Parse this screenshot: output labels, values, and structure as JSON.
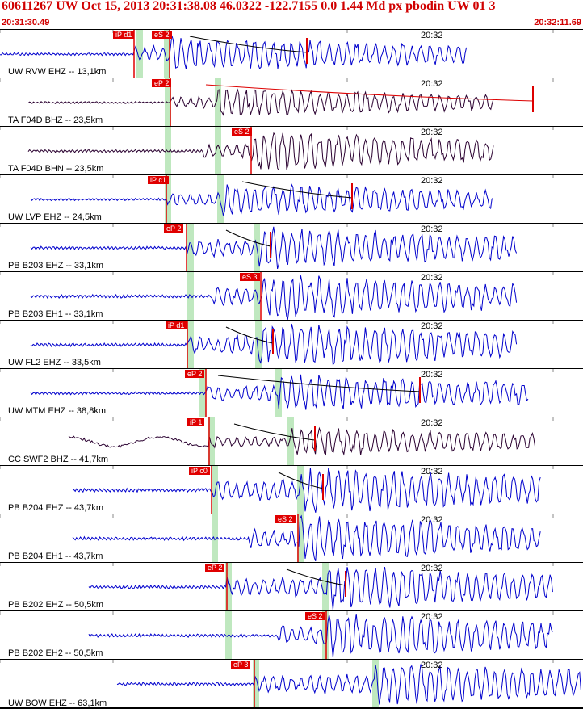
{
  "header": {
    "title": "60611267 UW Oct 15, 2013 20:31:38.08   46.0322 -122.7155  0.0 1.44 Md px pbodin UW 01    3",
    "start_time": "20:31:30.49",
    "end_time": "20:32:11.69"
  },
  "colors": {
    "trace_blue": "#0000cc",
    "trace_dark": "#2a0030",
    "pick_red": "#e00000",
    "theoretical_green": "#bfe8bf",
    "coda_red": "#dd0000"
  },
  "minute_mark_label": "20:32",
  "traces": [
    {
      "label": "UW RVW EHZ -- 13,1km",
      "color": "blue",
      "time": "20:32",
      "picks": [
        "iP d1",
        "eS 2"
      ]
    },
    {
      "label": "TA F04D BHZ -- 23,5km",
      "color": "dark",
      "time": "20:32",
      "picks": [
        "eP 2"
      ]
    },
    {
      "label": "TA F04D BHN -- 23,5km",
      "color": "dark",
      "time": "20:32",
      "picks": [
        "eS 2"
      ]
    },
    {
      "label": "UW LVP EHZ -- 24,5km",
      "color": "blue",
      "time": "20:32",
      "picks": [
        "iP c1"
      ]
    },
    {
      "label": "PB B203 EHZ -- 33,1km",
      "color": "blue",
      "time": "20:32",
      "picks": [
        "eP 2"
      ]
    },
    {
      "label": "PB B203 EH1 -- 33,1km",
      "color": "blue",
      "time": "20:32",
      "picks": [
        "eS 3"
      ]
    },
    {
      "label": "UW FL2 EHZ -- 33,5km",
      "color": "blue",
      "time": "20:32",
      "picks": [
        "iP d1"
      ]
    },
    {
      "label": "UW MTM EHZ -- 38,8km",
      "color": "blue",
      "time": "20:32",
      "picks": [
        "eP 2"
      ]
    },
    {
      "label": "CC SWF2 BHZ -- 41,7km",
      "color": "dark",
      "time": "20:32",
      "picks": [
        "iP 1"
      ]
    },
    {
      "label": "PB B204 EHZ -- 43,7km",
      "color": "blue",
      "time": "20:32",
      "picks": [
        "iP c0"
      ]
    },
    {
      "label": "PB B204 EH1 -- 43,7km",
      "color": "blue",
      "time": "20:32",
      "picks": [
        "eS 2"
      ]
    },
    {
      "label": "PB B202 EHZ -- 50,5km",
      "color": "blue",
      "time": "20:32",
      "picks": [
        "eP 2"
      ]
    },
    {
      "label": "PB B202 EH2 -- 50,5km",
      "color": "blue",
      "time": "20:32",
      "picks": [
        "eS 2"
      ]
    },
    {
      "label": "UW BOW EHZ -- 63,1km",
      "color": "blue",
      "time": "20:32",
      "picks": [
        "eP 3"
      ]
    }
  ]
}
